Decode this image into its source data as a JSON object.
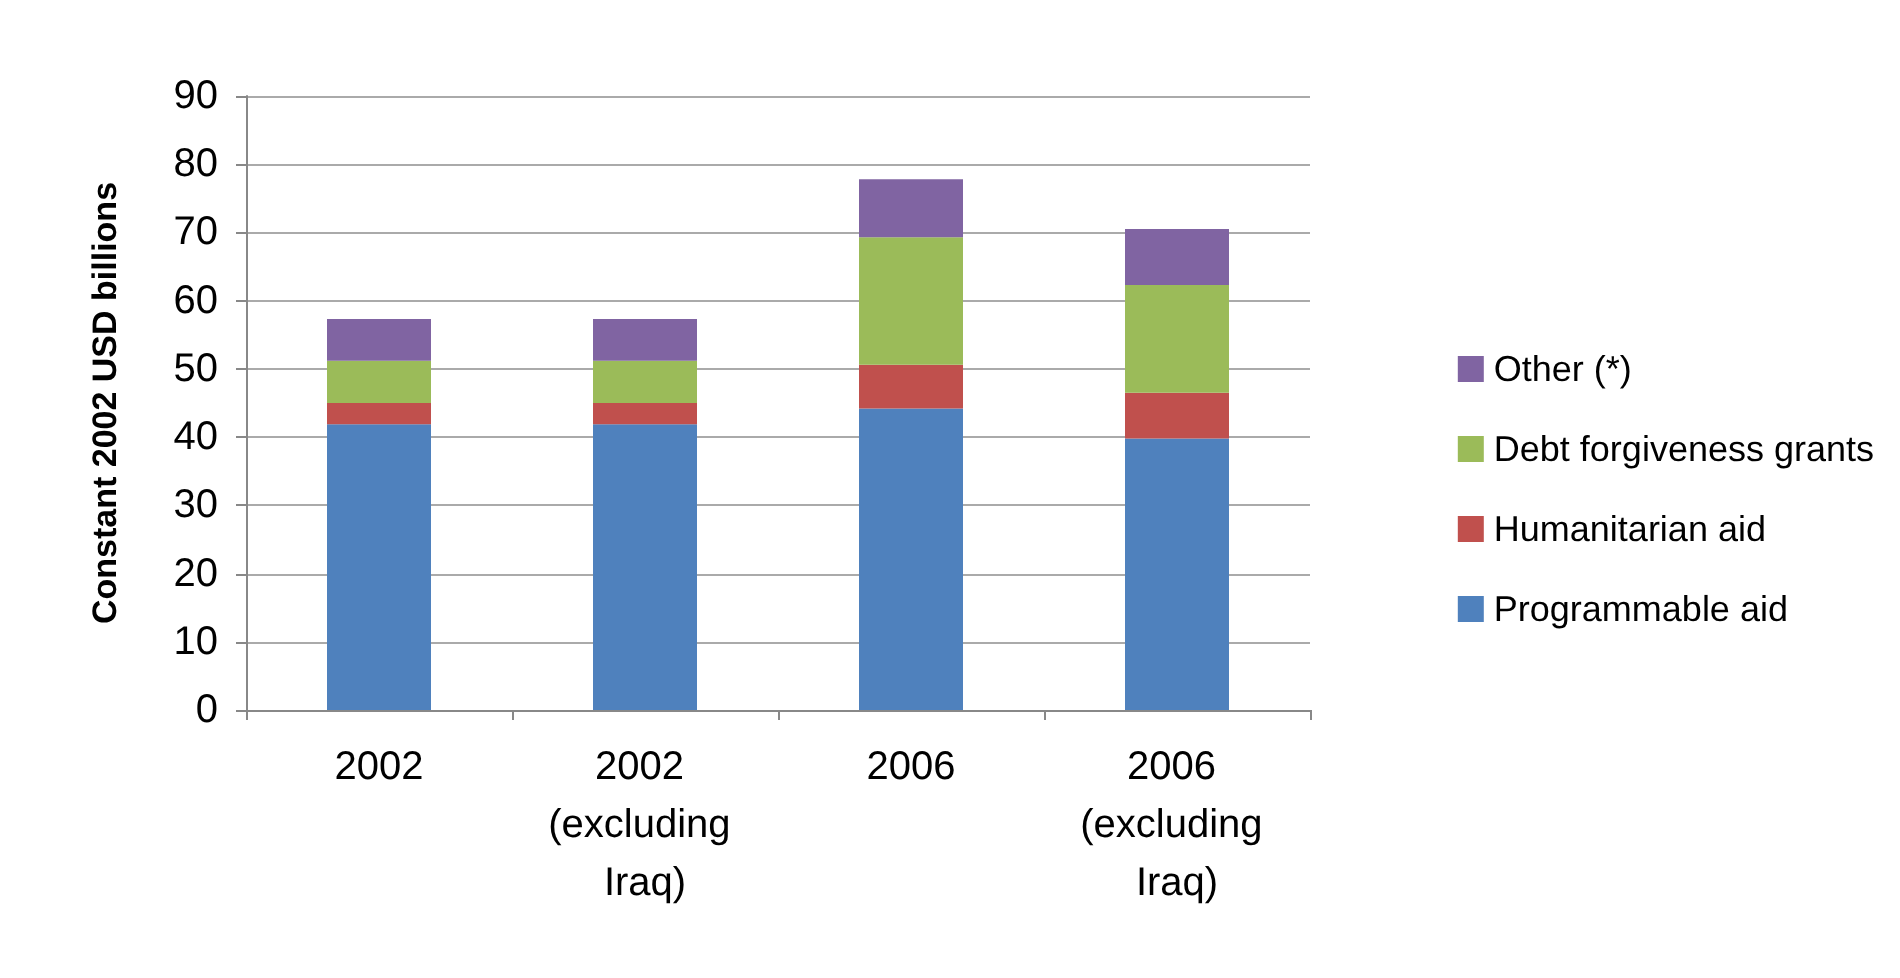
{
  "chart_data": {
    "type": "bar",
    "stacked": true,
    "ylabel": "Constant 2002 USD billions",
    "categories": [
      "2002",
      "2002 (excluding Iraq)",
      "2006",
      "2006 (excluding Iraq)"
    ],
    "series": [
      {
        "name": "Programmable aid",
        "color": "#4f81bd",
        "values": [
          41.9,
          41.9,
          44.2,
          39.8
        ]
      },
      {
        "name": "Humanitarian aid",
        "color": "#c0504d",
        "values": [
          3.1,
          3.1,
          6.4,
          6.7
        ]
      },
      {
        "name": "Debt forgiveness grants",
        "color": "#9bbb59",
        "values": [
          6.2,
          6.2,
          18.7,
          15.8
        ]
      },
      {
        "name": "Other (*)",
        "color": "#8064a2",
        "values": [
          6.1,
          6.1,
          8.5,
          8.2
        ]
      }
    ],
    "ylim": [
      0,
      90
    ],
    "yticks": [
      0,
      10,
      20,
      30,
      40,
      50,
      60,
      70,
      80,
      90
    ],
    "grid": "y",
    "legend": "right"
  }
}
